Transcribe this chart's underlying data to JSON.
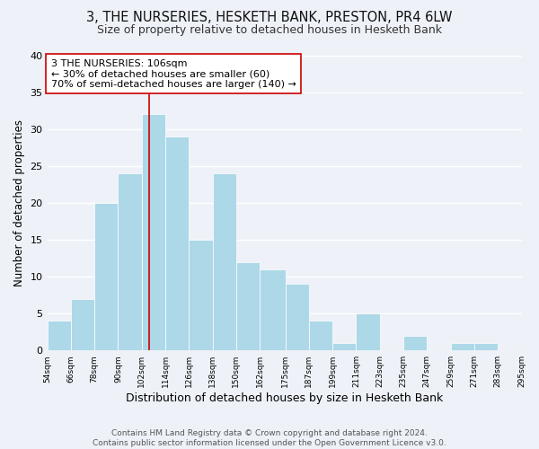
{
  "title1": "3, THE NURSERIES, HESKETH BANK, PRESTON, PR4 6LW",
  "title2": "Size of property relative to detached houses in Hesketh Bank",
  "xlabel": "Distribution of detached houses by size in Hesketh Bank",
  "ylabel": "Number of detached properties",
  "bin_edges": [
    54,
    66,
    78,
    90,
    102,
    114,
    126,
    138,
    150,
    162,
    175,
    187,
    199,
    211,
    223,
    235,
    247,
    259,
    271,
    283,
    295
  ],
  "counts": [
    4,
    7,
    20,
    24,
    32,
    29,
    15,
    24,
    12,
    11,
    9,
    4,
    1,
    5,
    0,
    2,
    0,
    1,
    1,
    0
  ],
  "bar_color": "#add8e8",
  "bar_edge_color": "#ffffff",
  "bar_linewidth": 0.5,
  "vline_x": 106,
  "vline_color": "#cc0000",
  "vline_linewidth": 1.2,
  "annotation_text": "3 THE NURSERIES: 106sqm\n← 30% of detached houses are smaller (60)\n70% of semi-detached houses are larger (140) →",
  "annotation_box_color": "#ffffff",
  "annotation_border_color": "#cc0000",
  "ylim": [
    0,
    40
  ],
  "yticks": [
    0,
    5,
    10,
    15,
    20,
    25,
    30,
    35,
    40
  ],
  "tick_labels": [
    "54sqm",
    "66sqm",
    "78sqm",
    "90sqm",
    "102sqm",
    "114sqm",
    "126sqm",
    "138sqm",
    "150sqm",
    "162sqm",
    "175sqm",
    "187sqm",
    "199sqm",
    "211sqm",
    "223sqm",
    "235sqm",
    "247sqm",
    "259sqm",
    "271sqm",
    "283sqm",
    "295sqm"
  ],
  "footnote": "Contains HM Land Registry data © Crown copyright and database right 2024.\nContains public sector information licensed under the Open Government Licence v3.0.",
  "bg_color": "#eef2f8",
  "grid_color": "#ffffff",
  "title1_fontsize": 10.5,
  "title2_fontsize": 9,
  "xlabel_fontsize": 9,
  "ylabel_fontsize": 8.5,
  "annotation_fontsize": 8,
  "tick_fontsize": 6.5,
  "ytick_fontsize": 8,
  "footnote_fontsize": 6.5
}
